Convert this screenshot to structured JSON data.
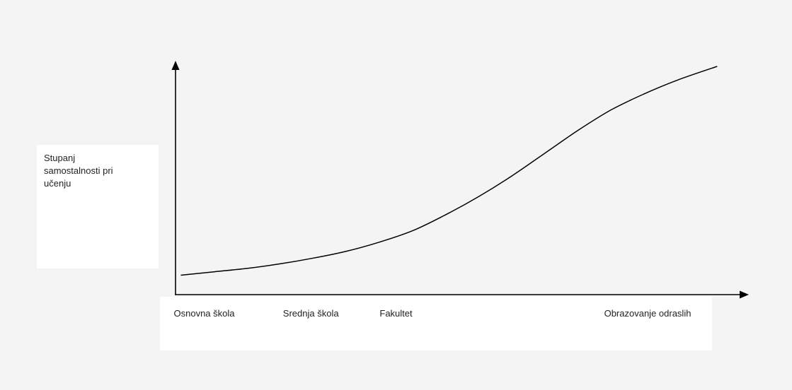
{
  "chart_data": {
    "type": "line",
    "title": "",
    "xlabel": "",
    "ylabel_lines": [
      "Stupanj",
      "samostalnosti pri",
      "učenju"
    ],
    "categories": [
      "Osnovna škola",
      "Srednja škola",
      "Fakultet",
      "Obrazovanje odraslih"
    ],
    "category_positions": [
      0,
      1.65,
      3.11,
      6.5
    ],
    "x_range": [
      -0.08,
      8.45
    ],
    "ylim": [
      0,
      100
    ],
    "grid": false,
    "legend": "none",
    "series": [
      {
        "x": [
          0,
          0.5,
          1,
          1.5,
          2,
          2.5,
          3,
          3.5,
          4,
          4.5,
          5,
          5.5,
          6,
          6.5,
          7,
          7.5,
          8.1
        ],
        "values": [
          8.5,
          10,
          11.5,
          13.5,
          16,
          19,
          23,
          28,
          35,
          43,
          52,
          62,
          72,
          81,
          88,
          94,
          100
        ]
      }
    ],
    "colors": {
      "background": "#f4f4f4",
      "panel": "#ffffff",
      "axis": "#000000",
      "line": "#000000",
      "text": "#222222"
    }
  }
}
